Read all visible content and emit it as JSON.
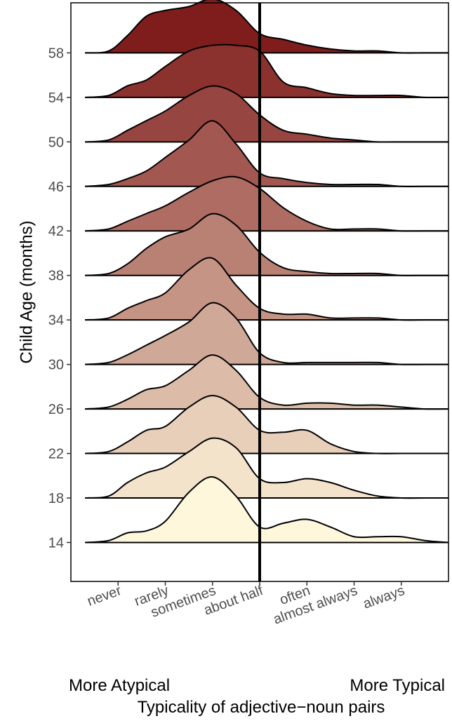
{
  "chart_data": {
    "type": "ridgeline",
    "xlabel": "Typicality of adjective−noun pairs",
    "ylabel": "Child Age (months)",
    "x_start_label": "More Atypical",
    "x_end_label": "More Typical",
    "x_categories": [
      "never",
      "rarely",
      "sometimes",
      "about half",
      "often",
      "almost always",
      "always"
    ],
    "x_category_values": [
      1,
      2,
      3,
      4,
      5,
      6,
      7
    ],
    "xlim": [
      0.0,
      8.0
    ],
    "y_ticks": [
      14,
      18,
      22,
      26,
      30,
      34,
      38,
      42,
      46,
      50,
      54,
      58
    ],
    "ylim": [
      10.5,
      62.5
    ],
    "reference_line_x": 4,
    "color_low": "#FFF7DC",
    "color_high": "#7F1D1D",
    "line_color": "#000000",
    "grid": false,
    "density_x": [
      0.3,
      0.8,
      1.2,
      1.6,
      2.0,
      2.5,
      3.0,
      3.5,
      4.0,
      4.5,
      5.0,
      5.5,
      6.0,
      6.5,
      7.0,
      7.5,
      8.0
    ],
    "series": [
      {
        "age": 14,
        "density": [
          0.0,
          0.05,
          0.25,
          0.3,
          0.55,
          1.3,
          1.7,
          1.2,
          0.4,
          0.5,
          0.6,
          0.4,
          0.15,
          0.15,
          0.15,
          0.05,
          0.0
        ]
      },
      {
        "age": 18,
        "density": [
          0.0,
          0.05,
          0.4,
          0.65,
          0.8,
          1.2,
          1.55,
          1.3,
          0.5,
          0.4,
          0.5,
          0.4,
          0.2,
          0.05,
          0.0,
          0.0,
          0.0
        ]
      },
      {
        "age": 22,
        "density": [
          0.0,
          0.05,
          0.3,
          0.6,
          0.7,
          1.2,
          1.5,
          1.2,
          0.6,
          0.55,
          0.6,
          0.25,
          0.05,
          0.0,
          0.0,
          0.0,
          0.0
        ]
      },
      {
        "age": 26,
        "density": [
          0.0,
          0.05,
          0.25,
          0.5,
          0.6,
          1.0,
          1.4,
          1.0,
          0.3,
          0.1,
          0.15,
          0.15,
          0.1,
          0.1,
          0.05,
          0.0,
          0.0
        ]
      },
      {
        "age": 30,
        "density": [
          0.0,
          0.05,
          0.25,
          0.5,
          0.75,
          1.1,
          1.6,
          1.2,
          0.3,
          0.05,
          0.05,
          0.05,
          0.05,
          0.05,
          0.0,
          0.0,
          0.0
        ]
      },
      {
        "age": 34,
        "density": [
          0.0,
          0.05,
          0.3,
          0.5,
          0.7,
          1.3,
          1.6,
          0.9,
          0.3,
          0.15,
          0.15,
          0.05,
          0.05,
          0.05,
          0.0,
          0.0,
          0.0
        ]
      },
      {
        "age": 38,
        "density": [
          0.0,
          0.05,
          0.3,
          0.7,
          1.0,
          1.2,
          1.6,
          1.3,
          0.6,
          0.2,
          0.1,
          0.05,
          0.05,
          0.05,
          0.0,
          0.0,
          0.0
        ]
      },
      {
        "age": 42,
        "density": [
          0.0,
          0.05,
          0.25,
          0.45,
          0.65,
          1.0,
          1.3,
          1.4,
          1.1,
          0.6,
          0.25,
          0.05,
          0.05,
          0.05,
          0.0,
          0.0,
          0.0
        ]
      },
      {
        "age": 46,
        "density": [
          0.0,
          0.05,
          0.2,
          0.4,
          0.75,
          1.2,
          1.7,
          1.1,
          0.35,
          0.2,
          0.1,
          0.05,
          0.05,
          0.05,
          0.0,
          0.0,
          0.0
        ]
      },
      {
        "age": 50,
        "density": [
          0.0,
          0.05,
          0.3,
          0.55,
          0.8,
          1.2,
          1.45,
          1.25,
          0.7,
          0.3,
          0.2,
          0.1,
          0.05,
          0.0,
          0.0,
          0.0,
          0.0
        ]
      },
      {
        "age": 54,
        "density": [
          0.0,
          0.05,
          0.3,
          0.45,
          0.8,
          1.2,
          1.35,
          1.35,
          1.2,
          0.4,
          0.25,
          0.1,
          0.05,
          0.05,
          0.05,
          0.0,
          0.0
        ]
      },
      {
        "age": 58,
        "density": [
          0.0,
          0.05,
          0.45,
          0.95,
          1.1,
          1.2,
          1.4,
          1.1,
          0.5,
          0.35,
          0.2,
          0.1,
          0.05,
          0.05,
          0.0,
          0.0,
          0.0
        ]
      }
    ]
  }
}
